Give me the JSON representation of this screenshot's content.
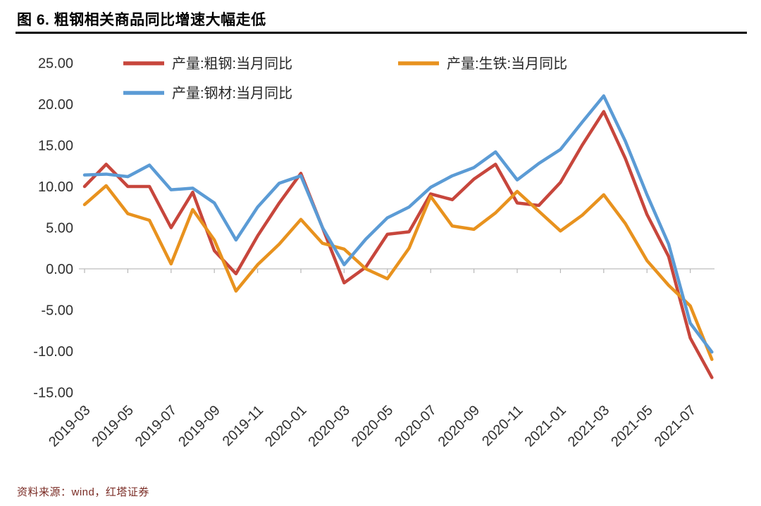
{
  "header": {
    "title": "图 6. 粗钢相关商品同比增速大幅走低"
  },
  "footer": {
    "source": "资料来源：wind，红塔证券"
  },
  "chart_data": {
    "type": "line",
    "title": "图 6. 粗钢相关商品同比增速大幅走低",
    "x": [
      "2019-03",
      "2019-04",
      "2019-05",
      "2019-06",
      "2019-07",
      "2019-08",
      "2019-09",
      "2019-10",
      "2019-11",
      "2019-12",
      "2020-01",
      "2020-02",
      "2020-03",
      "2020-04",
      "2020-05",
      "2020-06",
      "2020-07",
      "2020-08",
      "2020-09",
      "2020-10",
      "2020-11",
      "2020-12",
      "2021-01",
      "2021-02",
      "2021-03",
      "2021-04",
      "2021-05",
      "2021-06",
      "2021-07",
      "2021-08"
    ],
    "x_label_every": 2,
    "x_tick_labels": [
      "2019-03",
      "2019-05",
      "2019-07",
      "2019-09",
      "2019-11",
      "2020-01",
      "2020-03",
      "2020-05",
      "2020-07",
      "2020-09",
      "2020-11",
      "2021-01",
      "2021-03",
      "2021-05",
      "2021-07"
    ],
    "series": [
      {
        "name": "产量:粗钢:当月同比",
        "color": "#c7463c",
        "values": [
          10.0,
          12.7,
          10.0,
          10.0,
          5.0,
          9.3,
          2.2,
          -0.6,
          4.0,
          8.0,
          11.6,
          5.0,
          -1.7,
          0.2,
          4.2,
          4.5,
          9.1,
          8.4,
          10.9,
          12.7,
          8.0,
          7.7,
          10.5,
          15.0,
          19.1,
          13.4,
          6.6,
          1.5,
          -8.4,
          -13.2
        ]
      },
      {
        "name": "产量:生铁:当月同比",
        "color": "#e8921e",
        "values": [
          7.8,
          10.1,
          6.7,
          5.9,
          0.6,
          7.2,
          3.5,
          -2.7,
          0.5,
          3.0,
          6.0,
          3.1,
          2.4,
          0.0,
          -1.2,
          2.5,
          8.8,
          5.2,
          4.8,
          6.8,
          9.4,
          7.0,
          4.6,
          6.5,
          9.0,
          5.5,
          1.0,
          -2.0,
          -4.5,
          -11.0
        ]
      },
      {
        "name": "产量:钢材:当月同比",
        "color": "#5b9bd5",
        "values": [
          11.4,
          11.5,
          11.2,
          12.6,
          9.6,
          9.8,
          8.0,
          3.5,
          7.5,
          10.4,
          11.3,
          5.0,
          0.5,
          3.6,
          6.2,
          7.5,
          9.9,
          11.3,
          12.3,
          14.2,
          10.8,
          12.8,
          14.5,
          17.8,
          21.0,
          15.5,
          9.0,
          3.0,
          -6.6,
          -10.1
        ]
      }
    ],
    "ylim": [
      -15,
      25
    ],
    "yticks": [
      {
        "v": 25,
        "label": "25.00"
      },
      {
        "v": 20,
        "label": "20.00"
      },
      {
        "v": 15,
        "label": "15.00"
      },
      {
        "v": 10,
        "label": "10.00"
      },
      {
        "v": 5,
        "label": "5.00"
      },
      {
        "v": 0,
        "label": "0.00"
      },
      {
        "v": -5,
        "label": "-5.00"
      },
      {
        "v": -10,
        "label": "-10.00"
      },
      {
        "v": -15,
        "label": "-15.00"
      }
    ],
    "grid": false,
    "zero_axis_line": true,
    "legend_position": "top-left, two rows: crude steel + pig iron on row 1, steel products on row 2",
    "axis_text_color": "#303030",
    "zero_line_color": "#c9c9c9"
  }
}
